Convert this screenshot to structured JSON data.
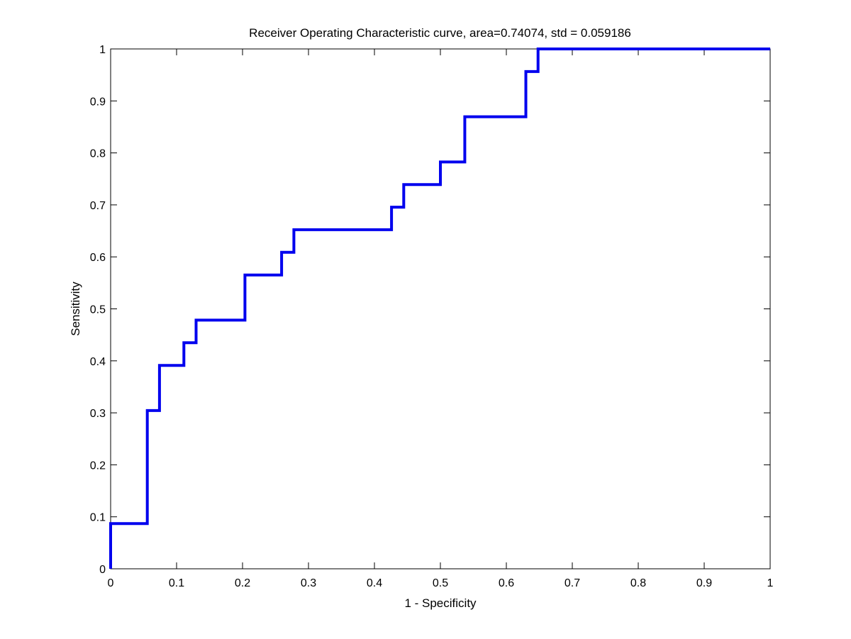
{
  "chart_data": {
    "type": "line",
    "title": "Receiver Operating Characteristic curve, area=0.74074, std = 0.059186",
    "xlabel": "1 - Specificity",
    "ylabel": "Sensitivity",
    "xlim": [
      0,
      1
    ],
    "ylim": [
      0,
      1
    ],
    "xticks": [
      "0",
      "0.1",
      "0.2",
      "0.3",
      "0.4",
      "0.5",
      "0.6",
      "0.7",
      "0.8",
      "0.9",
      "1"
    ],
    "yticks": [
      "0",
      "0.1",
      "0.2",
      "0.3",
      "0.4",
      "0.5",
      "0.6",
      "0.7",
      "0.8",
      "0.9",
      "1"
    ],
    "grid": false,
    "series": [
      {
        "color": "#0000ee",
        "step": true,
        "x": [
          0,
          0,
          0.0556,
          0.0556,
          0.0741,
          0.0741,
          0.1111,
          0.1111,
          0.1296,
          0.1296,
          0.2037,
          0.2037,
          0.2593,
          0.2593,
          0.2778,
          0.2778,
          0.4259,
          0.4259,
          0.4444,
          0.4444,
          0.5,
          0.5,
          0.537,
          0.537,
          0.6296,
          0.6296,
          0.6481,
          0.6481,
          1
        ],
        "y": [
          0,
          0.087,
          0.087,
          0.3043,
          0.3043,
          0.3913,
          0.3913,
          0.4348,
          0.4348,
          0.4783,
          0.4783,
          0.5652,
          0.5652,
          0.6087,
          0.6087,
          0.6522,
          0.6522,
          0.6957,
          0.6957,
          0.7391,
          0.7391,
          0.7826,
          0.7826,
          0.8696,
          0.8696,
          0.9565,
          0.9565,
          1,
          1
        ]
      }
    ]
  }
}
